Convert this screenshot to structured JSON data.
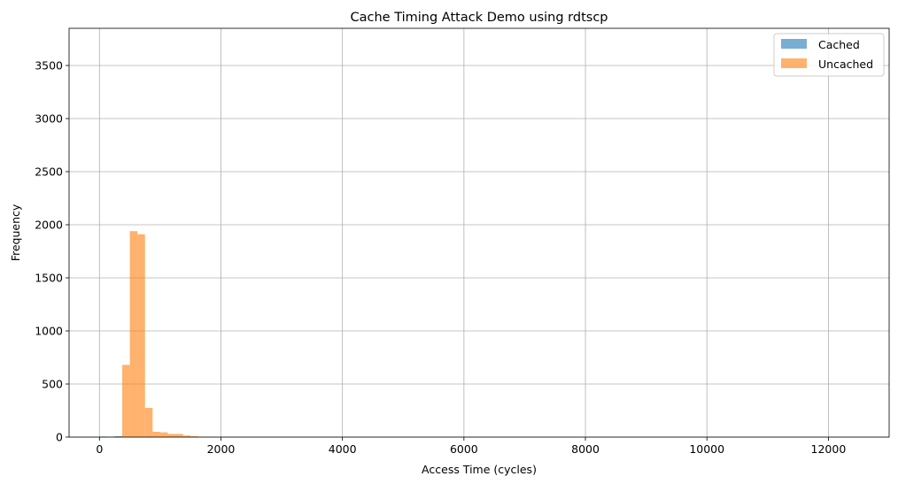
{
  "chart_data": {
    "type": "bar",
    "title": "Cache Timing Attack Demo using rdtscp",
    "xlabel": "Access Time (cycles)",
    "ylabel": "Frequency",
    "xlim": [
      -500,
      13000
    ],
    "ylim": [
      0,
      3850
    ],
    "xticks": [
      0,
      2000,
      4000,
      6000,
      8000,
      10000,
      12000
    ],
    "yticks": [
      0,
      500,
      1000,
      1500,
      2000,
      2500,
      3000,
      3500
    ],
    "grid": true,
    "legend_position": "top-right",
    "bin_width": 125,
    "series": [
      {
        "name": "Cached",
        "color": "#1f77b4",
        "bins": [
          {
            "x0": 0,
            "x1": 125,
            "y": 5
          },
          {
            "x0": 125,
            "x1": 250,
            "y": 3
          },
          {
            "x0": 250,
            "x1": 375,
            "y": 8
          }
        ]
      },
      {
        "name": "Uncached",
        "color": "#ff7f0e",
        "bins": [
          {
            "x0": 375,
            "x1": 500,
            "y": 680
          },
          {
            "x0": 500,
            "x1": 625,
            "y": 1940
          },
          {
            "x0": 625,
            "x1": 750,
            "y": 1910
          },
          {
            "x0": 750,
            "x1": 875,
            "y": 275
          },
          {
            "x0": 875,
            "x1": 1000,
            "y": 50
          },
          {
            "x0": 1000,
            "x1": 1125,
            "y": 45
          },
          {
            "x0": 1125,
            "x1": 1250,
            "y": 30
          },
          {
            "x0": 1250,
            "x1": 1375,
            "y": 30
          },
          {
            "x0": 1375,
            "x1": 1500,
            "y": 15
          },
          {
            "x0": 1500,
            "x1": 1625,
            "y": 8
          },
          {
            "x0": 1625,
            "x1": 1750,
            "y": 4
          },
          {
            "x0": 1750,
            "x1": 1875,
            "y": 3
          },
          {
            "x0": 1875,
            "x1": 2000,
            "y": 2
          },
          {
            "x0": 2000,
            "x1": 2125,
            "y": 2
          },
          {
            "x0": 2125,
            "x1": 2250,
            "y": 1
          }
        ]
      }
    ]
  }
}
